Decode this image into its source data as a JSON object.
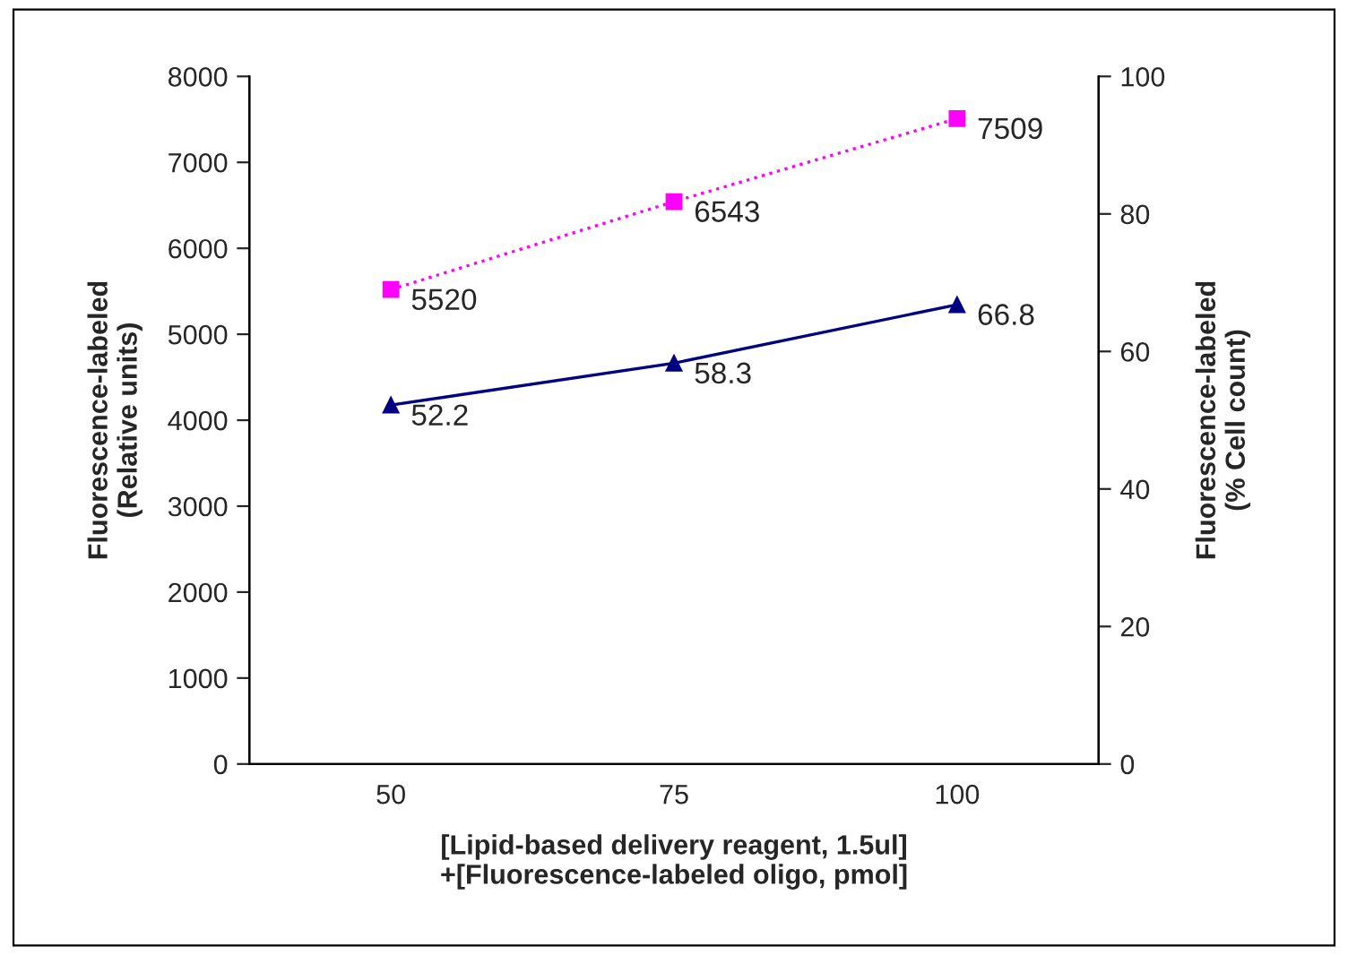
{
  "chart_data": {
    "type": "line",
    "xlabel": "[Lipid-based delivery reagent, 1.5ul]\n+[Fluorescence-labeled oligo, pmol]",
    "ylabel": "Fluorescence-labeled\n(Relative units)",
    "y2label": "Fluorescence-labeled\n(% Cell count)",
    "categories": [
      "50",
      "75",
      "100"
    ],
    "series": [
      {
        "color": "#ff00ff",
        "values": [
          5520,
          6543,
          7509
        ],
        "marker": "square",
        "line_style": "dotted"
      },
      {
        "color": "#000080",
        "values": [
          52.2,
          58.3,
          66.8
        ],
        "marker": "triangle",
        "line_style": "solid",
        "axis": "y2"
      }
    ],
    "ylim": [
      0,
      8000
    ],
    "yticks": [
      0,
      1000,
      2000,
      3000,
      4000,
      5000,
      6000,
      7000,
      8000
    ],
    "y2lim": [
      0,
      100
    ],
    "y2ticks": [
      0,
      20,
      40,
      60,
      80,
      100
    ],
    "data_labels": true,
    "grid": false,
    "legend": false
  }
}
